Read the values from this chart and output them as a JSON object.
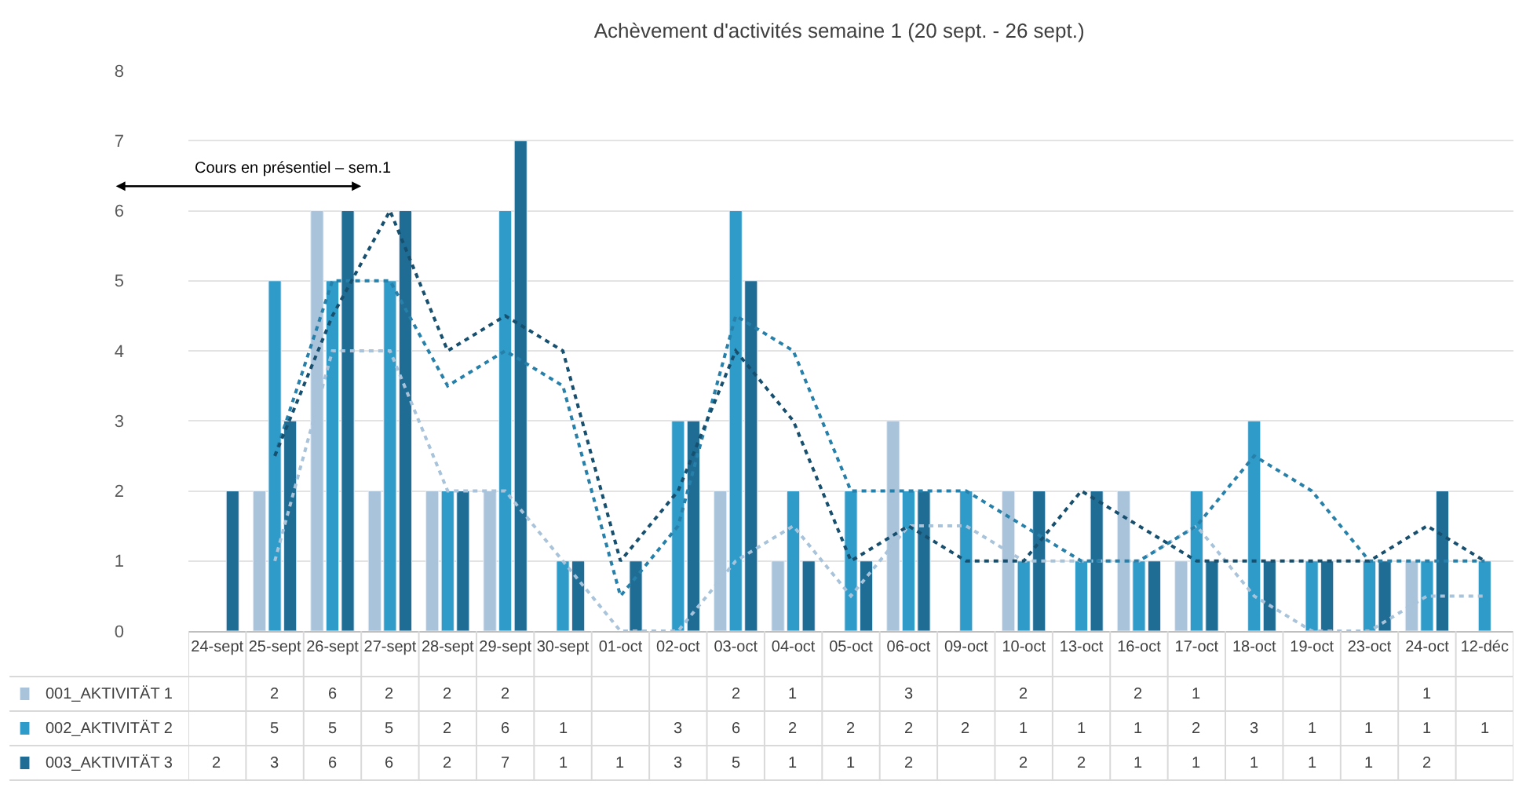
{
  "chart_data": {
    "type": "bar",
    "title": "Achèvement d'activités semaine 1 (20 sept. - 26 sept.)",
    "categories": [
      "24-sept",
      "25-sept",
      "26-sept",
      "27-sept",
      "28-sept",
      "29-sept",
      "30-sept",
      "01-oct",
      "02-oct",
      "03-oct",
      "04-oct",
      "05-oct",
      "06-oct",
      "09-oct",
      "10-oct",
      "13-oct",
      "16-oct",
      "17-oct",
      "18-oct",
      "19-oct",
      "23-oct",
      "24-oct",
      "12-déc"
    ],
    "series": [
      {
        "name": "001_AKTIVITÄT 1",
        "color": "#a8c3da",
        "values": [
          null,
          2,
          6,
          2,
          2,
          2,
          null,
          null,
          null,
          2,
          1,
          null,
          3,
          null,
          2,
          null,
          2,
          1,
          null,
          null,
          null,
          1,
          null
        ],
        "value_labels": [
          null,
          "2",
          "6",
          "2",
          "2",
          "2",
          null,
          null,
          null,
          "2",
          "1",
          null,
          "3",
          null,
          "2",
          null,
          "2",
          "1",
          null,
          null,
          null,
          "1",
          null
        ]
      },
      {
        "name": "002_AKTIVITÄT 2",
        "color": "#2f9bc8",
        "values": [
          null,
          5,
          5,
          5,
          2,
          6,
          1,
          null,
          3,
          6,
          2,
          2,
          2,
          2,
          1,
          1,
          1,
          2,
          3,
          1,
          1,
          1,
          1
        ],
        "value_labels": [
          null,
          "5",
          "5",
          "5",
          "2",
          "6",
          "1",
          null,
          "3",
          "6",
          "2",
          "2",
          "2",
          "2",
          "1",
          "1",
          "1",
          "2",
          "3",
          "1",
          "1",
          "1",
          "1"
        ]
      },
      {
        "name": "003_AKTIVITÄT 3",
        "color": "#1f6d95",
        "values": [
          2,
          3,
          6,
          6,
          2,
          7,
          1,
          1,
          3,
          5,
          1,
          1,
          2,
          null,
          2,
          2,
          1,
          1,
          1,
          1,
          1,
          2,
          null
        ],
        "value_labels": [
          "2",
          "3",
          "6",
          "6",
          "2",
          "7",
          "1",
          "1",
          "3",
          "5",
          "1",
          "1",
          "2",
          null,
          "2",
          "2",
          "1",
          "1",
          "1",
          "1",
          "1",
          "2",
          null
        ]
      },
      {
        "type": "line",
        "line_style": "dotted",
        "color": "#a8c3da",
        "values": [
          null,
          1,
          4,
          4,
          2,
          2,
          1,
          0,
          0,
          1,
          1.5,
          0.5,
          1.5,
          1.5,
          1,
          1,
          1,
          1.5,
          0.5,
          0,
          0,
          0.5,
          0.5
        ]
      },
      {
        "type": "line",
        "line_style": "dotted",
        "color": "#2680aa",
        "values": [
          null,
          2.5,
          5,
          5,
          3.5,
          4,
          3.5,
          0.5,
          1.5,
          4.5,
          4,
          2,
          2,
          2,
          1.5,
          1,
          1,
          1.5,
          2.5,
          2,
          1,
          1,
          1
        ]
      },
      {
        "type": "line",
        "line_style": "dotted",
        "color": "#174f6e",
        "values": [
          null,
          2.5,
          4.5,
          6,
          4,
          4.5,
          4,
          1,
          2,
          4,
          3,
          1,
          1.5,
          1,
          1,
          2,
          1.5,
          1,
          1,
          1,
          1,
          1.5,
          1
        ]
      }
    ],
    "ylim": [
      0,
      8
    ],
    "yticks": [
      0,
      1,
      2,
      3,
      4,
      5,
      6,
      7,
      8
    ],
    "grid": "y",
    "legend": "bottom left",
    "annotations": [
      "Cours en présentiel – sem.1"
    ]
  }
}
